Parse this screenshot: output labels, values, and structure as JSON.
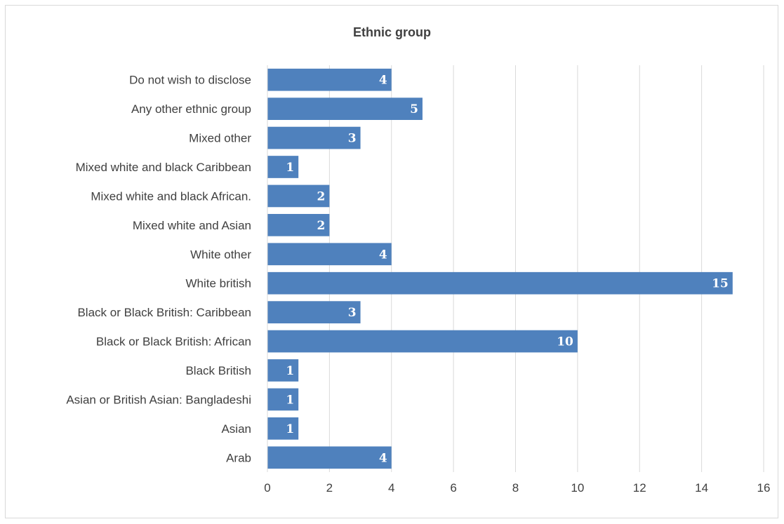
{
  "chart_data": {
    "type": "bar",
    "orientation": "horizontal",
    "title": "Ethnic group",
    "categories": [
      "Do not wish to disclose",
      "Any other ethnic group",
      "Mixed other",
      "Mixed white and black Caribbean",
      "Mixed white and black African.",
      "Mixed white and Asian",
      "White other",
      "White british",
      "Black or Black British: Caribbean",
      "Black or Black British: African",
      "Black British",
      "Asian or British Asian: Bangladeshi",
      "Asian",
      "Arab"
    ],
    "values": [
      4,
      5,
      3,
      1,
      2,
      2,
      4,
      15,
      3,
      10,
      1,
      1,
      1,
      4
    ],
    "xlim": [
      0,
      16
    ],
    "xticks": [
      0,
      2,
      4,
      6,
      8,
      10,
      12,
      14,
      16
    ],
    "grid": "vertical",
    "legend": "none",
    "data_labels": "inside-end",
    "colors": {
      "bar": "#4f81bd",
      "grid": "#d9d9d9",
      "text": "#404040",
      "data_label": "#ffffff"
    }
  }
}
